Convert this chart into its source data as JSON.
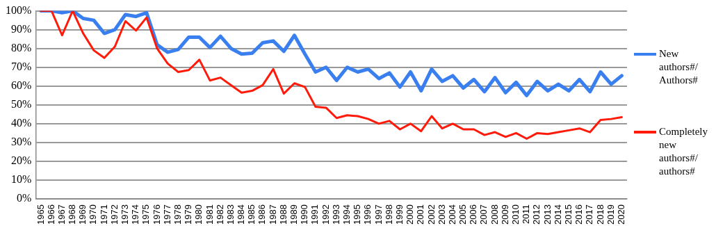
{
  "chart_data": {
    "type": "line",
    "categories": [
      "1965",
      "1966",
      "1967",
      "1968",
      "1969",
      "1970",
      "1971",
      "1972",
      "1973",
      "1974",
      "1975",
      "1976",
      "1977",
      "1978",
      "1979",
      "1980",
      "1981",
      "1982",
      "1983",
      "1984",
      "1985",
      "1986",
      "1987",
      "1988",
      "1989",
      "1990",
      "1991",
      "1992",
      "1993",
      "1994",
      "1995",
      "1996",
      "1997",
      "1998",
      "1999",
      "2000",
      "2001",
      "2002",
      "2003",
      "2004",
      "2005",
      "2006",
      "2007",
      "2008",
      "2009",
      "2010",
      "2011",
      "2012",
      "2013",
      "2014",
      "2015",
      "2016",
      "2017",
      "2018",
      "2019",
      "2020"
    ],
    "series": [
      {
        "name": "New authors#/ Authors#",
        "color": "#3a7ff0",
        "values": [
          100,
          100,
          99,
          100,
          96,
          95,
          88,
          90,
          98,
          97,
          99,
          82,
          78,
          79.5,
          86,
          86,
          80.5,
          86.5,
          80,
          77,
          77.5,
          83,
          84,
          78.5,
          87,
          77,
          67.5,
          70,
          63,
          70,
          67.5,
          69,
          64,
          67,
          59.5,
          67.5,
          57.5,
          69,
          62.5,
          65.5,
          59,
          63.5,
          57,
          64.5,
          56.5,
          62,
          55,
          62.5,
          57.5,
          61,
          57.5,
          63.5,
          57,
          67.5,
          61,
          65.5
        ]
      },
      {
        "name": "Completely new authors#/ authors#",
        "color": "#ff1a0a",
        "values": [
          100,
          100,
          87,
          100,
          88,
          79,
          75,
          81,
          94.5,
          89.5,
          96.5,
          80,
          72,
          67.5,
          68.5,
          74,
          63,
          64.5,
          60.5,
          56.5,
          57.5,
          60.5,
          69,
          56,
          61.5,
          59.5,
          49,
          48.5,
          43,
          44.5,
          44,
          42.5,
          40,
          41.5,
          37,
          40,
          36,
          44,
          37.5,
          40,
          37,
          37,
          34,
          35.5,
          33,
          35,
          32,
          35,
          34.5,
          35.5,
          36.5,
          37.5,
          35.5,
          42,
          42.5,
          43.5
        ]
      }
    ],
    "ylim": [
      0,
      100
    ],
    "yticks": [
      {
        "value": 0,
        "label": "0%"
      },
      {
        "value": 10,
        "label": "10%"
      },
      {
        "value": 20,
        "label": "20%"
      },
      {
        "value": 30,
        "label": "30%"
      },
      {
        "value": 40,
        "label": "40%"
      },
      {
        "value": 50,
        "label": "50%"
      },
      {
        "value": 60,
        "label": "60%"
      },
      {
        "value": 70,
        "label": "70%"
      },
      {
        "value": 80,
        "label": "80%"
      },
      {
        "value": 90,
        "label": "90%"
      },
      {
        "value": 100,
        "label": "100%"
      }
    ],
    "grid": "y",
    "legend": "right",
    "marker": "none",
    "line_style": "solid"
  }
}
